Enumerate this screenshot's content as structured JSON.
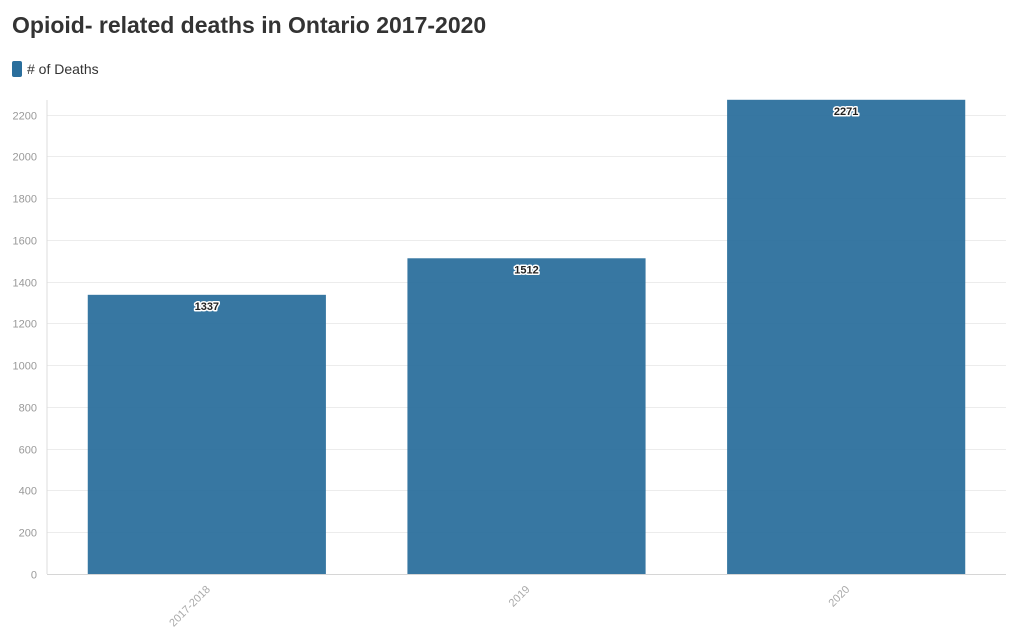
{
  "chart_data": {
    "type": "bar",
    "title": "Opioid- related deaths in Ontario 2017-2020",
    "categories": [
      "2017-2018",
      "2019",
      "2020"
    ],
    "series": [
      {
        "name": "# of Deaths",
        "values": [
          1337,
          1512,
          2271
        ],
        "color": "#2a6e9c"
      }
    ],
    "xlabel": "",
    "ylabel": "",
    "ylim": [
      0,
      2270
    ],
    "yticks": [
      0,
      200,
      400,
      600,
      800,
      1000,
      1200,
      1400,
      1600,
      1800,
      2000,
      2200
    ],
    "grid": true,
    "legend_position": "top-left",
    "data_labels": true
  }
}
